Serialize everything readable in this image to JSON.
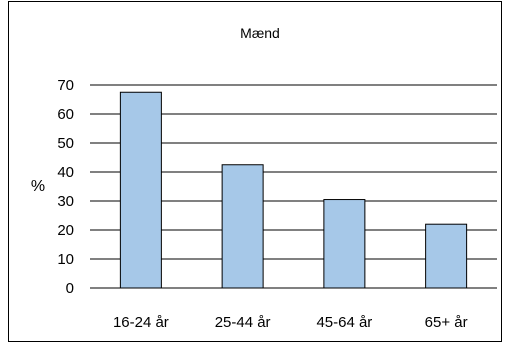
{
  "chart_data": {
    "type": "bar",
    "title": "Mænd",
    "ylabel": "%",
    "xlabel": "",
    "categories": [
      "16-24 år",
      "25-44 år",
      "45-64 år",
      "65+ år"
    ],
    "values": [
      67.5,
      42.5,
      30.5,
      22
    ],
    "ylim": [
      0,
      70
    ],
    "yticks": [
      0,
      10,
      20,
      30,
      40,
      50,
      60,
      70
    ],
    "grid": true,
    "bar_color": "#a6c8e8",
    "bar_edge_color": "#000000"
  }
}
